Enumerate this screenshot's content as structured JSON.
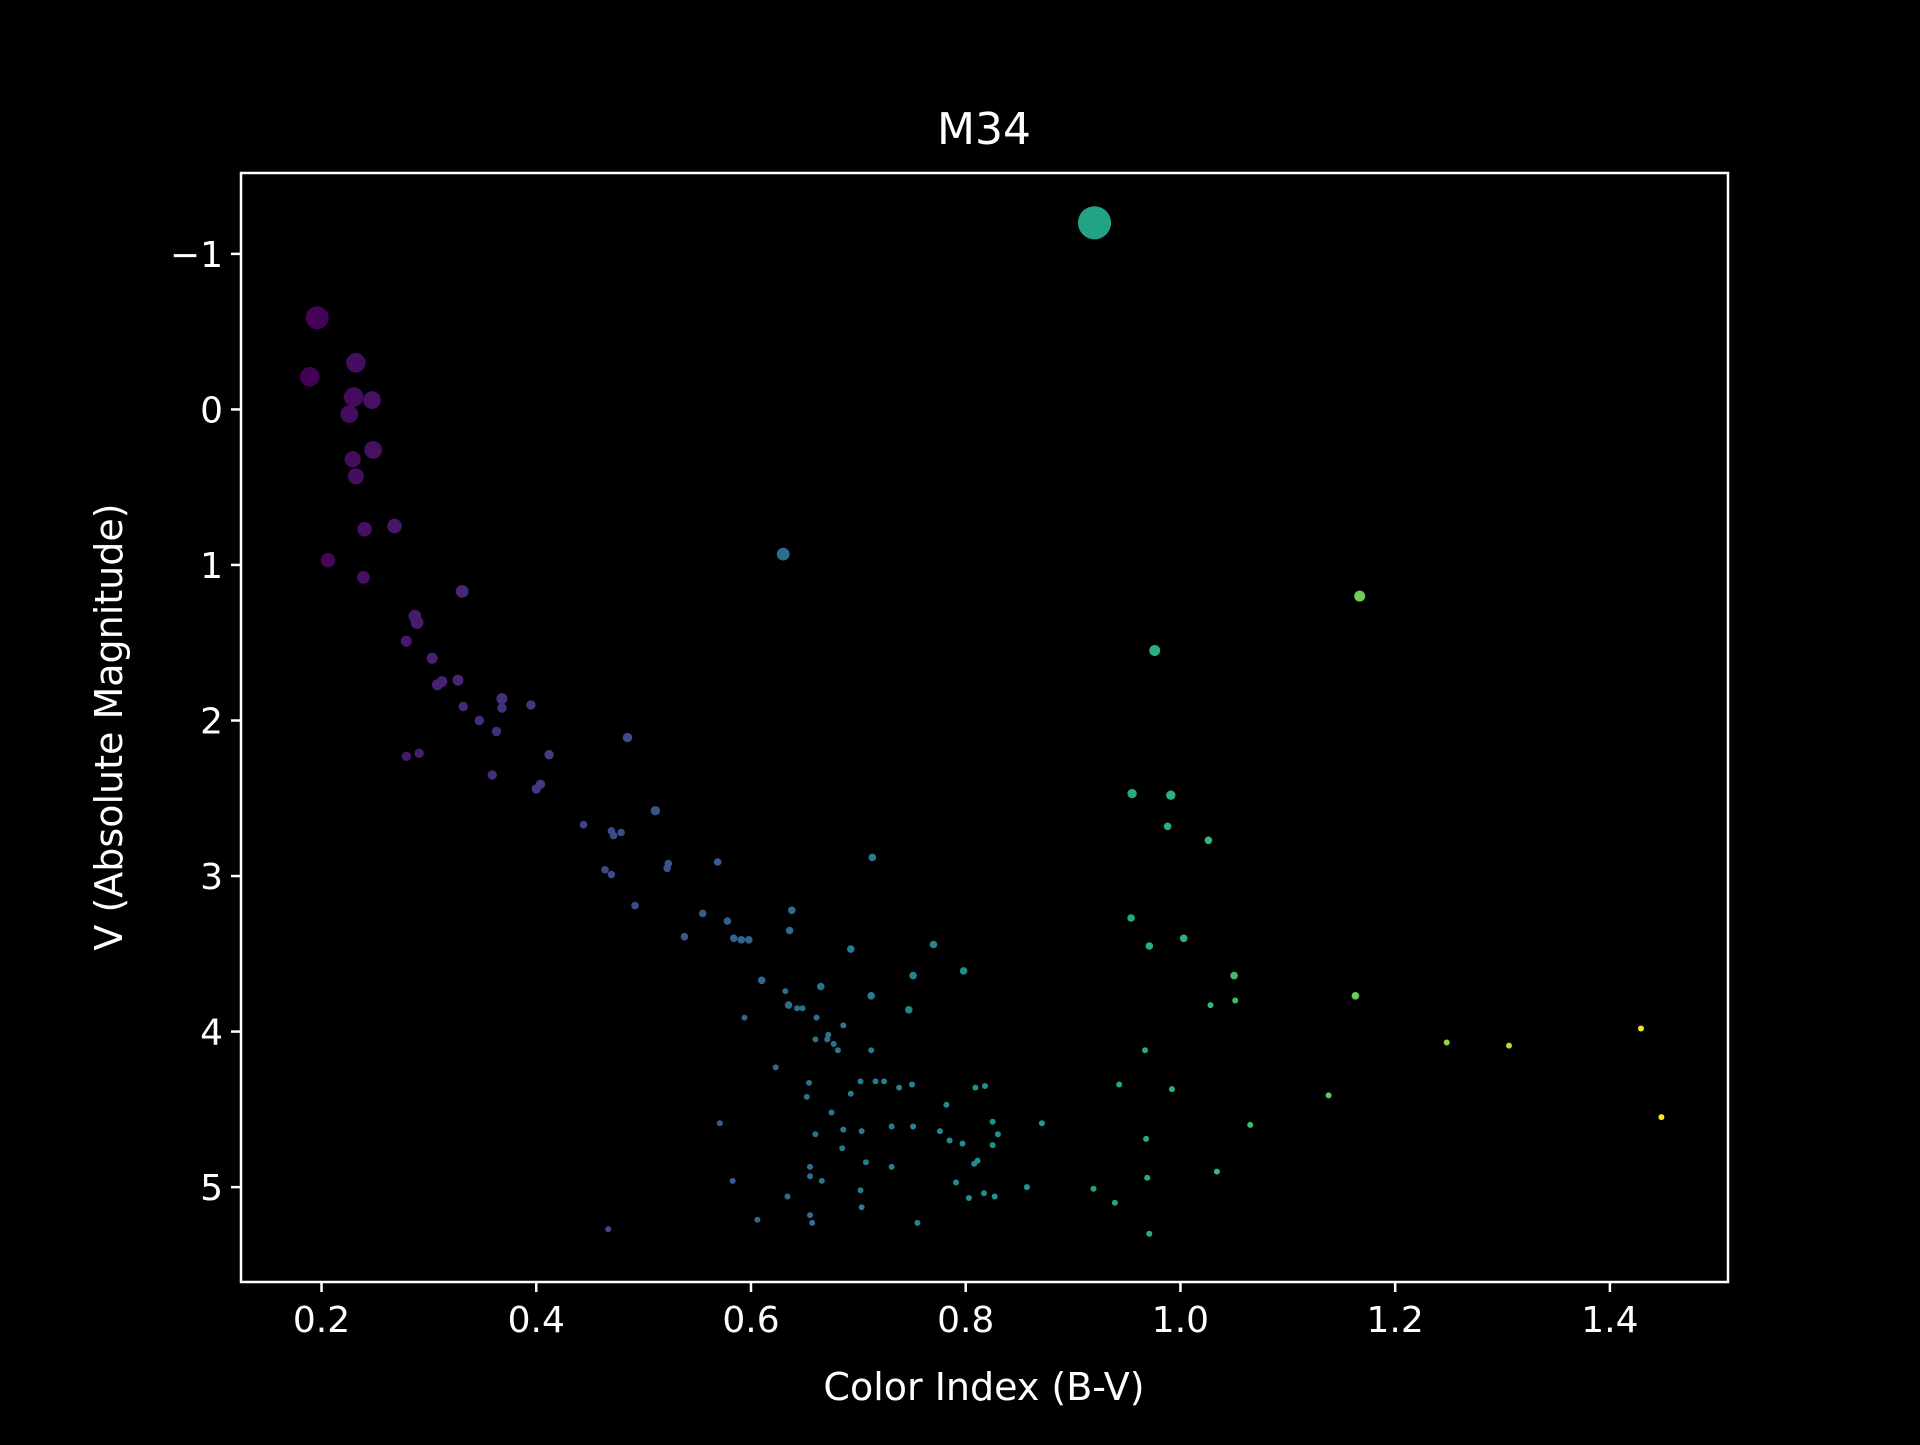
{
  "chart_data": {
    "type": "scatter",
    "title": "M34",
    "xlabel": "Color Index (B-V)",
    "ylabel": "V (Absolute Magnitude)",
    "xlim": [
      0.125,
      1.51
    ],
    "ylim": [
      5.61,
      -1.52
    ],
    "y_inverted": true,
    "grid": false,
    "background": "#000000",
    "foreground": "#ffffff",
    "colormap": "viridis",
    "color_encodes": "Color Index (B-V)",
    "size_encodes": "brightness (larger marker = brighter star)",
    "xticks": [
      0.2,
      0.4,
      0.6,
      0.8,
      1.0,
      1.2,
      1.4
    ],
    "xtick_labels": [
      "0.2",
      "0.4",
      "0.6",
      "0.8",
      "1.0",
      "1.2",
      "1.4"
    ],
    "yticks": [
      -1,
      0,
      1,
      2,
      3,
      4,
      5
    ],
    "ytick_labels": [
      "−1",
      "0",
      "1",
      "2",
      "3",
      "4",
      "5"
    ],
    "x": [
      0.92,
      0.196,
      0.189,
      0.232,
      0.23,
      0.247,
      0.226,
      0.248,
      0.229,
      0.232,
      0.24,
      0.268,
      0.206,
      0.239,
      0.63,
      0.331,
      1.167,
      0.287,
      0.289,
      0.279,
      0.303,
      0.976,
      0.327,
      0.312,
      0.308,
      0.368,
      0.332,
      0.368,
      0.395,
      0.347,
      0.363,
      0.485,
      0.279,
      0.291,
      0.412,
      0.359,
      0.404,
      0.4,
      0.955,
      0.991,
      0.511,
      0.444,
      0.988,
      0.47,
      0.479,
      0.472,
      1.026,
      0.713,
      0.569,
      0.523,
      0.522,
      0.464,
      0.47,
      0.492,
      0.638,
      0.555,
      0.578,
      0.954,
      0.636,
      1.003,
      0.538,
      0.584,
      0.598,
      0.591,
      0.77,
      0.971,
      0.693,
      0.798,
      0.751,
      1.05,
      0.61,
      0.712,
      0.632,
      0.635,
      0.665,
      1.163,
      0.747,
      1.028,
      1.051,
      0.643,
      0.594,
      0.648,
      0.661,
      0.686,
      0.672,
      0.66,
      0.671,
      0.677,
      0.681,
      0.967,
      1.429,
      1.248,
      1.306,
      0.712,
      0.623,
      0.702,
      0.716,
      0.724,
      0.738,
      0.75,
      0.654,
      0.809,
      0.818,
      0.943,
      0.992,
      1.138,
      0.693,
      0.652,
      0.675,
      0.782,
      0.825,
      0.871,
      0.731,
      0.751,
      0.776,
      1.448,
      0.686,
      0.571,
      1.065,
      0.66,
      0.83,
      0.707,
      0.968,
      0.655,
      0.785,
      0.797,
      0.811,
      0.825,
      0.731,
      0.808,
      0.685,
      0.703,
      0.655,
      0.583,
      0.666,
      0.791,
      0.857,
      1.034,
      0.969,
      0.919,
      0.817,
      0.702,
      0.634,
      0.803,
      0.827,
      0.703,
      0.939,
      0.655,
      0.606,
      0.755,
      0.657,
      0.971,
      0.467
    ],
    "y": [
      -1.2,
      -0.59,
      -0.21,
      -0.3,
      -0.08,
      -0.06,
      0.03,
      0.26,
      0.32,
      0.43,
      0.77,
      0.75,
      0.97,
      1.08,
      0.93,
      1.17,
      1.2,
      1.33,
      1.37,
      1.49,
      1.6,
      1.55,
      1.74,
      1.75,
      1.77,
      1.86,
      1.91,
      1.92,
      1.9,
      2.0,
      2.07,
      2.11,
      2.23,
      2.21,
      2.22,
      2.35,
      2.41,
      2.44,
      2.47,
      2.48,
      2.58,
      2.67,
      2.68,
      2.71,
      2.72,
      2.74,
      2.77,
      2.88,
      2.91,
      2.92,
      2.95,
      2.96,
      2.99,
      3.19,
      3.22,
      3.24,
      3.29,
      3.27,
      3.35,
      3.4,
      3.39,
      3.4,
      3.41,
      3.41,
      3.44,
      3.45,
      3.47,
      3.61,
      3.64,
      3.64,
      3.67,
      3.77,
      3.74,
      3.83,
      3.71,
      3.77,
      3.86,
      3.83,
      3.8,
      3.85,
      3.91,
      3.85,
      3.91,
      3.96,
      4.02,
      4.05,
      4.05,
      4.08,
      4.12,
      4.12,
      3.98,
      4.07,
      4.09,
      4.12,
      4.23,
      4.32,
      4.32,
      4.32,
      4.36,
      4.34,
      4.33,
      4.36,
      4.35,
      4.34,
      4.37,
      4.41,
      4.4,
      4.42,
      4.52,
      4.47,
      4.58,
      4.59,
      4.61,
      4.61,
      4.64,
      4.55,
      4.63,
      4.59,
      4.6,
      4.66,
      4.66,
      4.84,
      4.69,
      4.87,
      4.7,
      4.72,
      4.83,
      4.73,
      4.87,
      4.85,
      4.75,
      4.64,
      4.93,
      4.96,
      4.96,
      4.97,
      5.0,
      4.9,
      4.94,
      5.01,
      5.04,
      5.02,
      5.06,
      5.07,
      5.06,
      5.13,
      5.1,
      5.18,
      5.21,
      5.23,
      5.23,
      5.3,
      5.27
    ],
    "size_scale": [
      18,
      12,
      10,
      10,
      10,
      9,
      9,
      9,
      8,
      8,
      7,
      7,
      7,
      6,
      6,
      6,
      5,
      6,
      6,
      5,
      5,
      5,
      5,
      5,
      5,
      5,
      4,
      4,
      4,
      4,
      4,
      4,
      4,
      4,
      4,
      4,
      4,
      4,
      4,
      4,
      4,
      3,
      3,
      3,
      3,
      3,
      3,
      3,
      3,
      3,
      3,
      3,
      3,
      3,
      3,
      3,
      3,
      3,
      3,
      3,
      3,
      3,
      3,
      3,
      3,
      3,
      3,
      3,
      3,
      3,
      3,
      3,
      2,
      3,
      3,
      3,
      3,
      2,
      2,
      2,
      2,
      2,
      2,
      2,
      2,
      2,
      2,
      2,
      2,
      2,
      2,
      2,
      2,
      2,
      2,
      2,
      2,
      2,
      2,
      2,
      2,
      2,
      2,
      2,
      2,
      2,
      2,
      2,
      2,
      2,
      2,
      2,
      2,
      2,
      2,
      2,
      2,
      2,
      2,
      2,
      2,
      2,
      2,
      2,
      2,
      2,
      2,
      2,
      2,
      2,
      2,
      2,
      2,
      2,
      2,
      2,
      2,
      2,
      2,
      2,
      2,
      2,
      2,
      2,
      2,
      2,
      2,
      2,
      2,
      2,
      2,
      2,
      2
    ]
  }
}
